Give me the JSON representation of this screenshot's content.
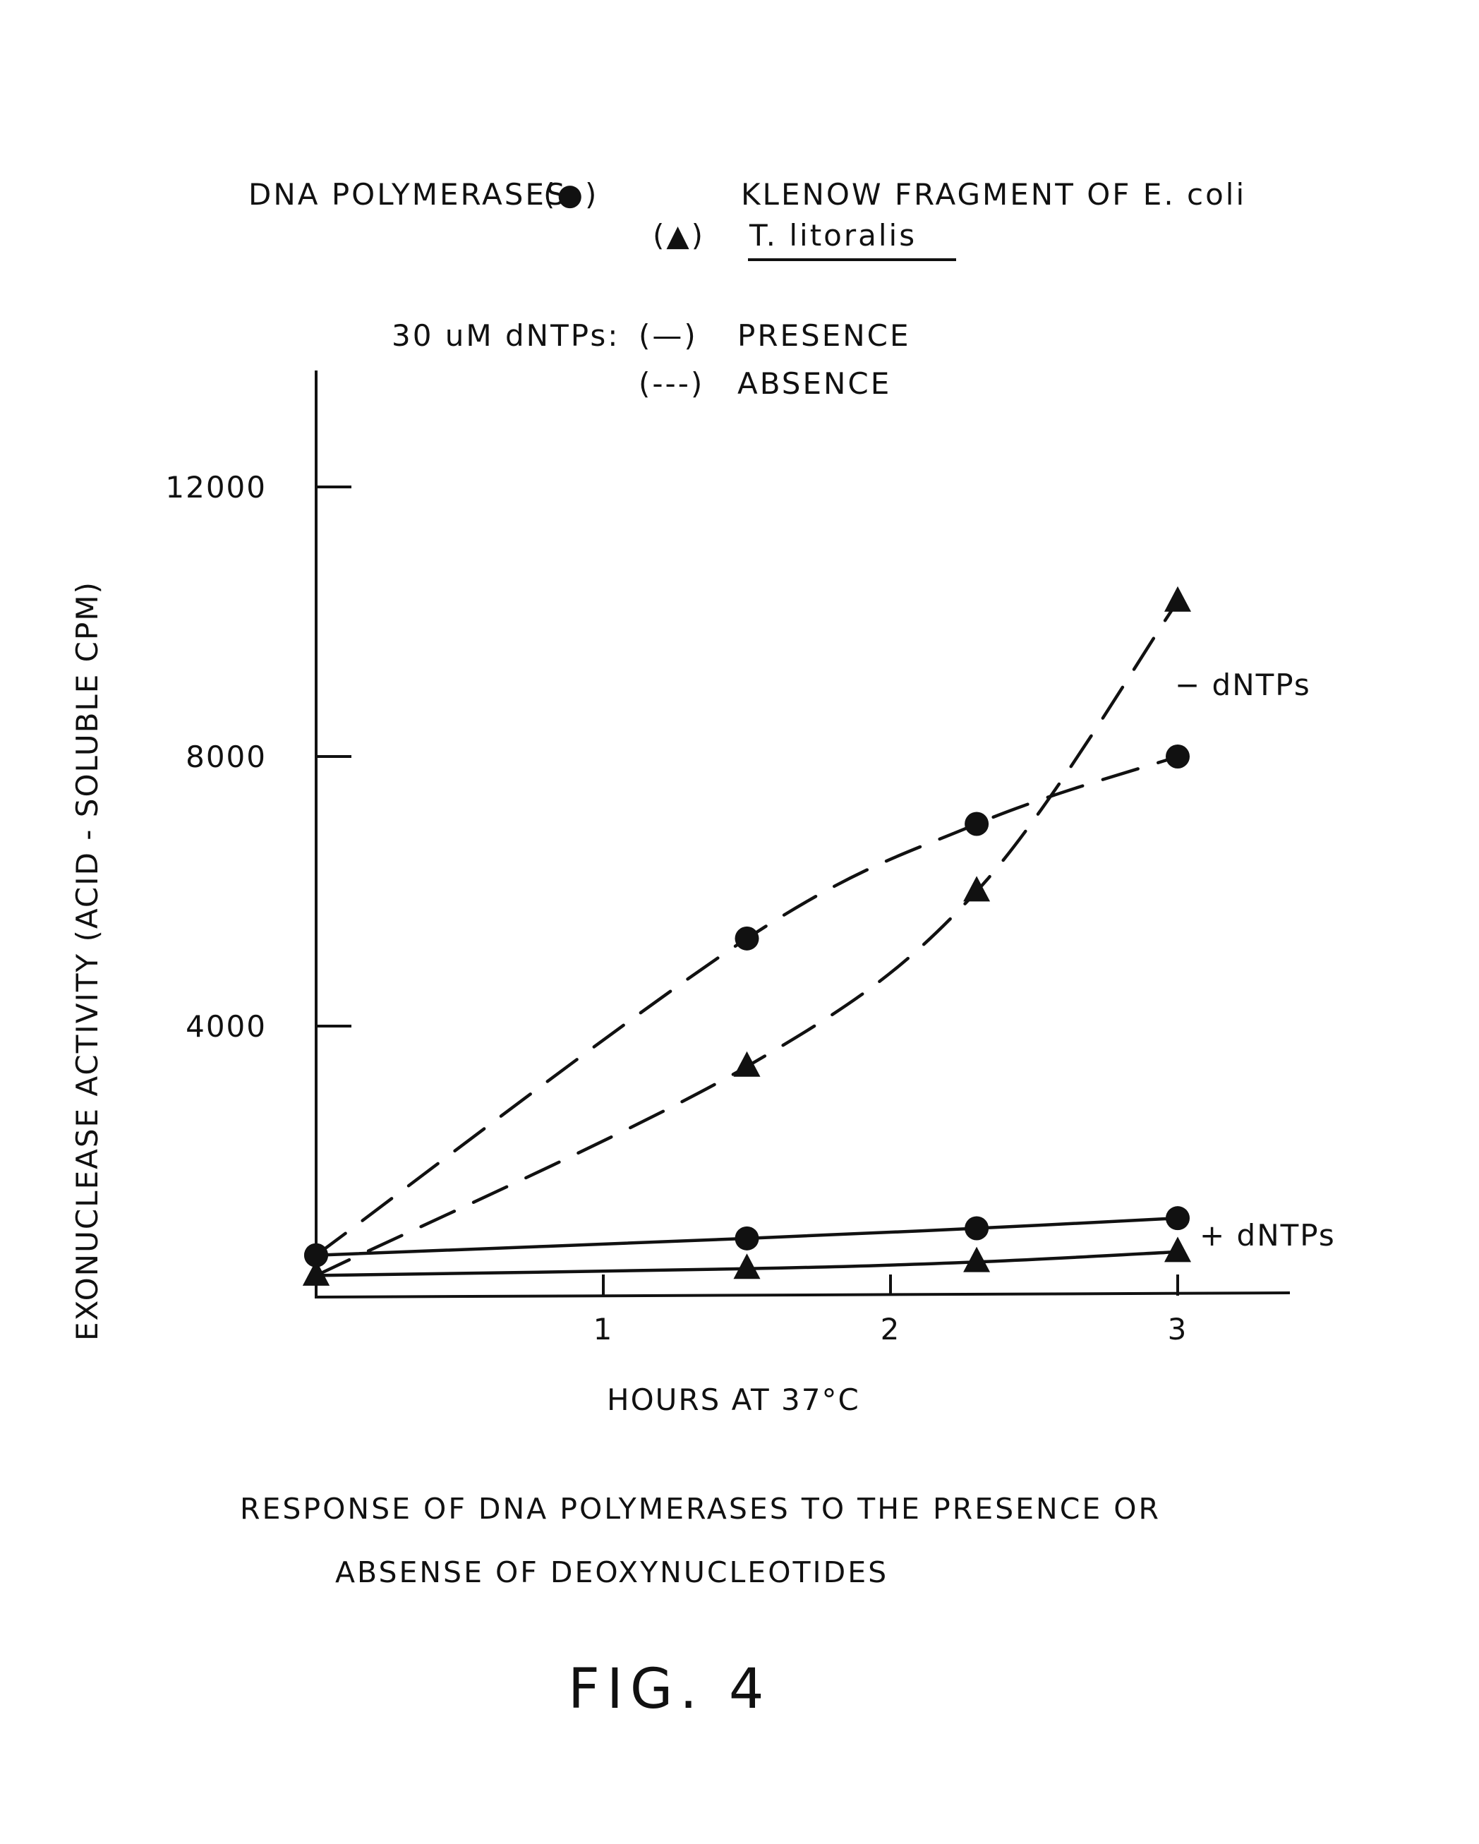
{
  "legend": {
    "title_label": "DNA POLYMERASES:",
    "klenow_symbol": "(●)",
    "klenow_label": "KLENOW FRAGMENT OF E. coli",
    "tli_symbol": "(▲)",
    "tli_label": "T. litoralis",
    "dntp_label": "30 uM dNTPs:",
    "presence_symbol": "(—)",
    "presence_label": "PRESENCE",
    "absence_symbol": "(---)",
    "absence_label": "ABSENCE"
  },
  "annotations": {
    "minus_dntps": "− dNTPs",
    "plus_dntps": "+ dNTPs"
  },
  "caption": {
    "line1": "RESPONSE OF DNA POLYMERASES TO THE PRESENCE OR",
    "line2": "ABSENSE OF DEOXYNUCLEOTIDES"
  },
  "figure_label": "FIG. 4",
  "chart_data": {
    "type": "line",
    "title": "",
    "xlabel": "HOURS AT 37°C",
    "ylabel": "EXONUCLEASE ACTIVITY (ACID - SOLUBLE CPM)",
    "xlim": [
      0,
      3.4
    ],
    "ylim": [
      0,
      13500
    ],
    "x_ticks": [
      1,
      2,
      3
    ],
    "x_tick_labels": [
      "1",
      "2",
      "3"
    ],
    "y_ticks": [
      4000,
      8000,
      12000
    ],
    "y_tick_labels": [
      "4000",
      "8000",
      "12000"
    ],
    "grid": false,
    "series": [
      {
        "name": "KLENOW FRAGMENT OF E. coli − dNTPs",
        "marker": "circle",
        "line": "dashed",
        "x": [
          0,
          1.5,
          2.3,
          3.0
        ],
        "y": [
          600,
          5300,
          7000,
          8000
        ]
      },
      {
        "name": "T. litoralis − dNTPs",
        "marker": "triangle",
        "line": "dashed",
        "x": [
          0,
          1.5,
          2.3,
          3.0
        ],
        "y": [
          300,
          3400,
          6000,
          10300
        ]
      },
      {
        "name": "KLENOW FRAGMENT OF E. coli + dNTPs",
        "marker": "circle",
        "line": "solid",
        "x": [
          0,
          1.5,
          2.3,
          3.0
        ],
        "y": [
          600,
          850,
          1000,
          1150
        ]
      },
      {
        "name": "T. litoralis + dNTPs",
        "marker": "triangle",
        "line": "solid",
        "x": [
          0,
          1.5,
          2.3,
          3.0
        ],
        "y": [
          300,
          400,
          500,
          650
        ]
      }
    ]
  }
}
